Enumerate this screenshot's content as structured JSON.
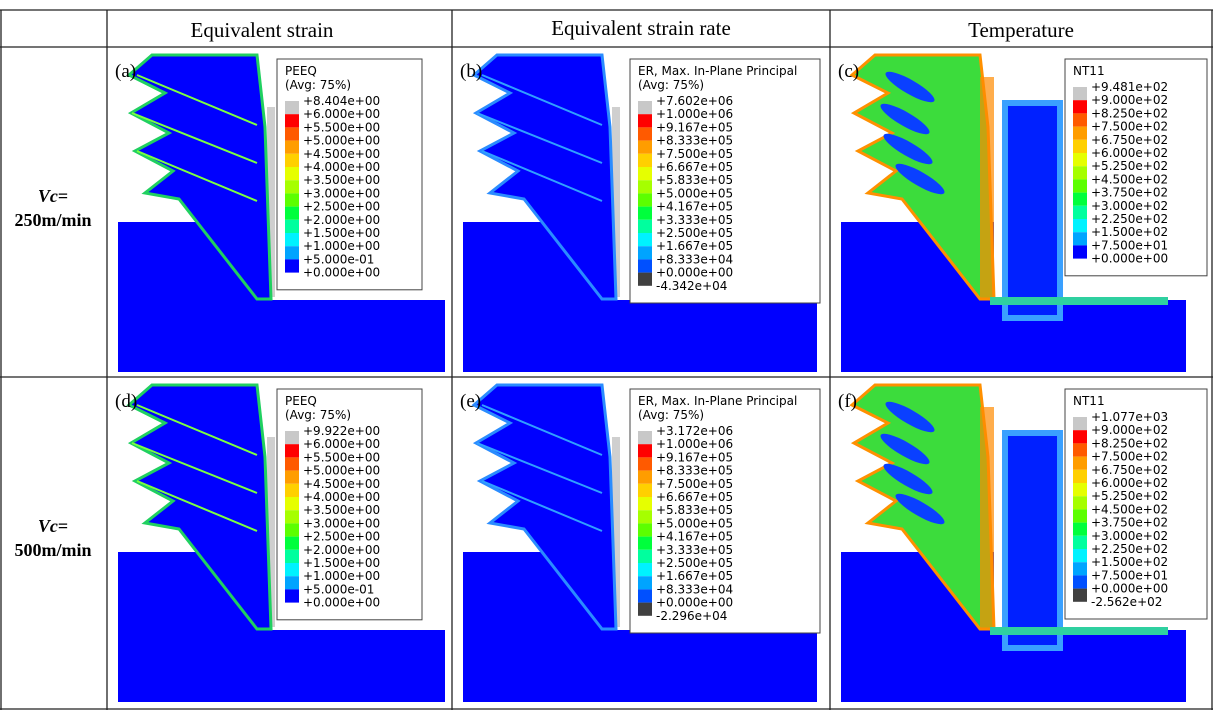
{
  "header": {
    "columns": [
      "Equivalent strain",
      "Equivalent strain rate",
      "Temperature"
    ]
  },
  "rows": [
    {
      "symbol": "Vc",
      "equals": "=",
      "speed": "250m/min",
      "panels": [
        {
          "tag": "(a)",
          "legend_title": [
            "PEEQ",
            "(Avg: 75%)"
          ],
          "legend_labels": [
            "+8.404e+00",
            "+6.000e+00",
            "+5.500e+00",
            "+5.000e+00",
            "+4.500e+00",
            "+4.000e+00",
            "+3.500e+00",
            "+3.000e+00",
            "+2.500e+00",
            "+2.000e+00",
            "+1.500e+00",
            "+1.000e+00",
            "+5.000e-01",
            "+0.000e+00"
          ]
        },
        {
          "tag": "(b)",
          "legend_title": [
            "ER, Max. In-Plane Principal",
            "(Avg: 75%)"
          ],
          "legend_labels": [
            "+7.602e+06",
            "+1.000e+06",
            "+9.167e+05",
            "+8.333e+05",
            "+7.500e+05",
            "+6.667e+05",
            "+5.833e+05",
            "+5.000e+05",
            "+4.167e+05",
            "+3.333e+05",
            "+2.500e+05",
            "+1.667e+05",
            "+8.333e+04",
            "+0.000e+00",
            "-4.342e+04"
          ]
        },
        {
          "tag": "(c)",
          "legend_title": [
            "NT11"
          ],
          "legend_labels": [
            "+9.481e+02",
            "+9.000e+02",
            "+8.250e+02",
            "+7.500e+02",
            "+6.750e+02",
            "+6.000e+02",
            "+5.250e+02",
            "+4.500e+02",
            "+3.750e+02",
            "+3.000e+02",
            "+2.250e+02",
            "+1.500e+02",
            "+7.500e+01",
            "+0.000e+00"
          ]
        }
      ]
    },
    {
      "symbol": "Vc",
      "equals": "=",
      "speed": "500m/min",
      "panels": [
        {
          "tag": "(d)",
          "legend_title": [
            "PEEQ",
            "(Avg: 75%)"
          ],
          "legend_labels": [
            "+9.922e+00",
            "+6.000e+00",
            "+5.500e+00",
            "+5.000e+00",
            "+4.500e+00",
            "+4.000e+00",
            "+3.500e+00",
            "+3.000e+00",
            "+2.500e+00",
            "+2.000e+00",
            "+1.500e+00",
            "+1.000e+00",
            "+5.000e-01",
            "+0.000e+00"
          ]
        },
        {
          "tag": "(e)",
          "legend_title": [
            "ER, Max. In-Plane Principal",
            "(Avg: 75%)"
          ],
          "legend_labels": [
            "+3.172e+06",
            "+1.000e+06",
            "+9.167e+05",
            "+8.333e+05",
            "+7.500e+05",
            "+6.667e+05",
            "+5.833e+05",
            "+5.000e+05",
            "+4.167e+05",
            "+3.333e+05",
            "+2.500e+05",
            "+1.667e+05",
            "+8.333e+04",
            "+0.000e+00",
            "-2.296e+04"
          ]
        },
        {
          "tag": "(f)",
          "legend_title": [
            "NT11"
          ],
          "legend_labels": [
            "+1.077e+03",
            "+9.000e+02",
            "+8.250e+02",
            "+7.500e+02",
            "+6.750e+02",
            "+6.000e+02",
            "+5.250e+02",
            "+4.500e+02",
            "+3.750e+02",
            "+3.000e+02",
            "+2.250e+02",
            "+1.500e+02",
            "+7.500e+01",
            "+0.000e+00",
            "-2.562e+02"
          ]
        }
      ]
    }
  ]
}
